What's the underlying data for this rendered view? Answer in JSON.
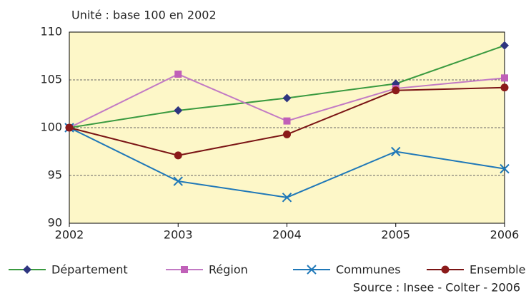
{
  "chart_data": {
    "type": "line",
    "subtitle": "Unité : base 100 en 2002",
    "source": "Source : Insee - Colter - 2006",
    "x": [
      2002,
      2003,
      2004,
      2005,
      2006
    ],
    "xlim": [
      2002,
      2006
    ],
    "xticks": [
      2002,
      2003,
      2004,
      2005,
      2006
    ],
    "ylim": [
      90,
      110
    ],
    "yticks": [
      90,
      95,
      100,
      105,
      110
    ],
    "grid": true,
    "background": "#fdf7c8",
    "series": [
      {
        "name": "Département",
        "color": "#3a9a40",
        "marker": "diamond",
        "marker_color": "#2e3580",
        "values": [
          100,
          101.8,
          103.1,
          104.6,
          108.6
        ]
      },
      {
        "name": "Région",
        "color": "#c27ac4",
        "marker": "square",
        "marker_color": "#c060b8",
        "values": [
          100,
          105.6,
          100.7,
          104.1,
          105.2
        ]
      },
      {
        "name": "Communes",
        "color": "#1f78b8",
        "marker": "x",
        "marker_color": "#1f78b8",
        "values": [
          100,
          94.4,
          92.7,
          97.5,
          95.7
        ]
      },
      {
        "name": "Ensemble",
        "color": "#7a1414",
        "marker": "circle",
        "marker_color": "#8b1a1a",
        "values": [
          100,
          97.1,
          99.3,
          103.9,
          104.2
        ]
      }
    ]
  }
}
